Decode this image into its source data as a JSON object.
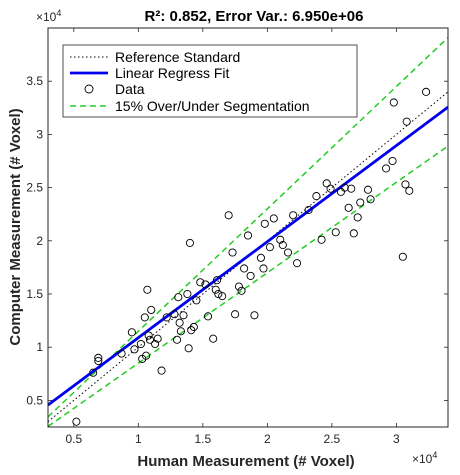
{
  "chart_data": {
    "type": "scatter",
    "title": "R²: 0.852, Error Var.: 6.950e+06",
    "xlabel": "Human Measurement (# Voxel)",
    "ylabel": "Computer Measurement (# Voxel)",
    "x_exponent_label": "×10",
    "x_exponent_power": "4",
    "y_exponent_label": "×10",
    "y_exponent_power": "4",
    "xlim": [
      3000,
      34000
    ],
    "ylim": [
      2500,
      40000
    ],
    "xticks": [
      5000,
      10000,
      15000,
      20000,
      25000,
      30000
    ],
    "xtick_labels": [
      "0.5",
      "1",
      "1.5",
      "2",
      "2.5",
      "3"
    ],
    "yticks": [
      5000,
      10000,
      15000,
      20000,
      25000,
      30000,
      35000
    ],
    "ytick_labels": [
      "0.5",
      "1",
      "1.5",
      "2",
      "2.5",
      "3",
      "3.5"
    ],
    "legend_position": "top-left",
    "colors": {
      "fit": "#0000ee",
      "bounds": "#22cc22",
      "reference": "#000000",
      "data": "#000000"
    },
    "legend": [
      {
        "label": "Reference Standard",
        "style": "dotted",
        "color": "#000000"
      },
      {
        "label": "Linear Regress Fit",
        "style": "solid",
        "color": "#0000ee"
      },
      {
        "label": "Data",
        "style": "marker",
        "color": "#000000"
      },
      {
        "label": "15% Over/Under Segmentation",
        "style": "dashed",
        "color": "#22cc22"
      }
    ],
    "fit_line": {
      "slope": 0.903,
      "intercept": 1860
    },
    "bounds_factors": [
      1.15,
      0.85
    ],
    "points": [
      [
        5200,
        3000
      ],
      [
        6500,
        7600
      ],
      [
        6900,
        8700
      ],
      [
        6900,
        9000
      ],
      [
        8700,
        9400
      ],
      [
        9500,
        11400
      ],
      [
        9700,
        9800
      ],
      [
        10200,
        10300
      ],
      [
        10300,
        8900
      ],
      [
        10500,
        12800
      ],
      [
        10600,
        9200
      ],
      [
        10700,
        15400
      ],
      [
        10800,
        11100
      ],
      [
        10900,
        10700
      ],
      [
        11000,
        13500
      ],
      [
        11300,
        10300
      ],
      [
        11500,
        10800
      ],
      [
        11800,
        7800
      ],
      [
        12200,
        12800
      ],
      [
        12800,
        13100
      ],
      [
        13000,
        10700
      ],
      [
        13100,
        14700
      ],
      [
        13200,
        12300
      ],
      [
        13300,
        11500
      ],
      [
        13500,
        13000
      ],
      [
        13800,
        15000
      ],
      [
        13900,
        9900
      ],
      [
        14000,
        19800
      ],
      [
        14100,
        11600
      ],
      [
        14300,
        11900
      ],
      [
        14500,
        14400
      ],
      [
        14800,
        16100
      ],
      [
        15200,
        15900
      ],
      [
        15400,
        12900
      ],
      [
        15800,
        10800
      ],
      [
        16000,
        15400
      ],
      [
        16100,
        16300
      ],
      [
        16200,
        15000
      ],
      [
        16500,
        14800
      ],
      [
        17000,
        22400
      ],
      [
        17300,
        18900
      ],
      [
        17500,
        13100
      ],
      [
        17800,
        15700
      ],
      [
        18000,
        15300
      ],
      [
        18200,
        17400
      ],
      [
        18500,
        20500
      ],
      [
        18700,
        16700
      ],
      [
        19000,
        13000
      ],
      [
        19500,
        18400
      ],
      [
        19700,
        17400
      ],
      [
        19800,
        21600
      ],
      [
        20200,
        19400
      ],
      [
        20500,
        22100
      ],
      [
        21000,
        20100
      ],
      [
        21200,
        19600
      ],
      [
        21600,
        18900
      ],
      [
        22000,
        22400
      ],
      [
        22300,
        17900
      ],
      [
        23200,
        22900
      ],
      [
        23800,
        24200
      ],
      [
        24200,
        20100
      ],
      [
        24600,
        25400
      ],
      [
        24900,
        24900
      ],
      [
        25300,
        20800
      ],
      [
        25700,
        24600
      ],
      [
        26000,
        25000
      ],
      [
        26300,
        23100
      ],
      [
        26500,
        24900
      ],
      [
        26700,
        20700
      ],
      [
        27000,
        22200
      ],
      [
        27200,
        23600
      ],
      [
        27800,
        24800
      ],
      [
        28000,
        23900
      ],
      [
        29200,
        26800
      ],
      [
        29700,
        27500
      ],
      [
        29800,
        33000
      ],
      [
        30500,
        18500
      ],
      [
        30700,
        25300
      ],
      [
        30800,
        31200
      ],
      [
        31000,
        24700
      ],
      [
        32300,
        34000
      ]
    ]
  }
}
